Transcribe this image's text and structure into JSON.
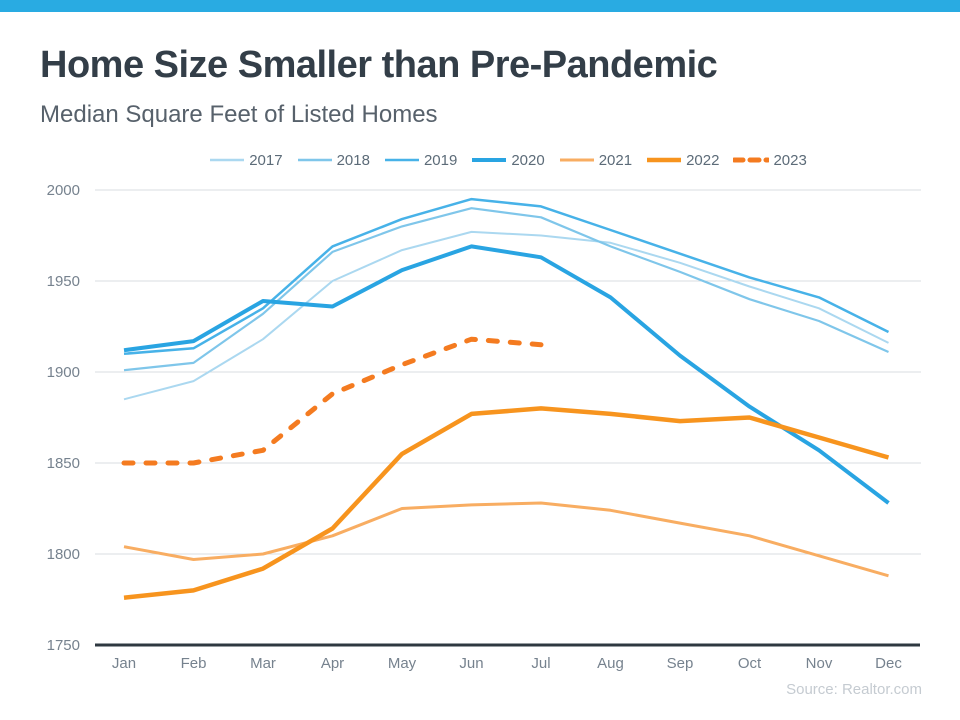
{
  "header": {
    "title": "Home Size Smaller than Pre-Pandemic",
    "subtitle": "Median Square Feet of Listed Homes",
    "accent_bar_color": "#29ABE2"
  },
  "source": "Source: Realtor.com",
  "style": {
    "gridline_color": "#D9DDE0",
    "axis_line_color": "#2E3840",
    "tick_label_color": "#76828E",
    "legend_label_color": "#5C6B78"
  },
  "chart_data": {
    "type": "line",
    "title": "Home Size Smaller than Pre-Pandemic",
    "subtitle": "Median Square Feet of Listed Homes",
    "xlabel": "",
    "ylabel": "",
    "categories": [
      "Jan",
      "Feb",
      "Mar",
      "Apr",
      "May",
      "Jun",
      "Jul",
      "Aug",
      "Sep",
      "Oct",
      "Nov",
      "Dec"
    ],
    "ylim": [
      1750,
      2000
    ],
    "yticks": [
      2000,
      1950,
      1900,
      1850,
      1800,
      1750
    ],
    "grid": true,
    "legend_position": "top",
    "series": [
      {
        "name": "2017",
        "color": "#ABD8F0",
        "width": 2,
        "dash": null,
        "values": [
          1885,
          1895,
          1918,
          1950,
          1967,
          1977,
          1975,
          1971,
          1960,
          1947,
          1935,
          1916
        ]
      },
      {
        "name": "2018",
        "color": "#7FC6EA",
        "width": 2.2,
        "dash": null,
        "values": [
          1901,
          1905,
          1932,
          1966,
          1980,
          1990,
          1985,
          1969,
          1955,
          1940,
          1928,
          1911
        ]
      },
      {
        "name": "2019",
        "color": "#47B2E8",
        "width": 2.5,
        "dash": null,
        "values": [
          1910,
          1913,
          1935,
          1969,
          1984,
          1995,
          1991,
          1978,
          1965,
          1952,
          1941,
          1922
        ]
      },
      {
        "name": "2020",
        "color": "#29A4E2",
        "width": 4,
        "dash": null,
        "values": [
          1912,
          1917,
          1939,
          1936,
          1956,
          1969,
          1963,
          1941,
          1909,
          1881,
          1857,
          1828
        ]
      },
      {
        "name": "2021",
        "color": "#F8AD62",
        "width": 3,
        "dash": null,
        "values": [
          1804,
          1797,
          1800,
          1810,
          1825,
          1827,
          1828,
          1824,
          1817,
          1810,
          1799,
          1788
        ]
      },
      {
        "name": "2022",
        "color": "#F7941E",
        "width": 4.5,
        "dash": null,
        "values": [
          1776,
          1780,
          1792,
          1814,
          1855,
          1877,
          1880,
          1877,
          1873,
          1875,
          1864,
          1853
        ]
      },
      {
        "name": "2023",
        "color": "#F47B20",
        "width": 5,
        "dash": "9 13",
        "values": [
          1850,
          1850,
          1857,
          1888,
          1904,
          1918,
          1915
        ]
      }
    ]
  }
}
